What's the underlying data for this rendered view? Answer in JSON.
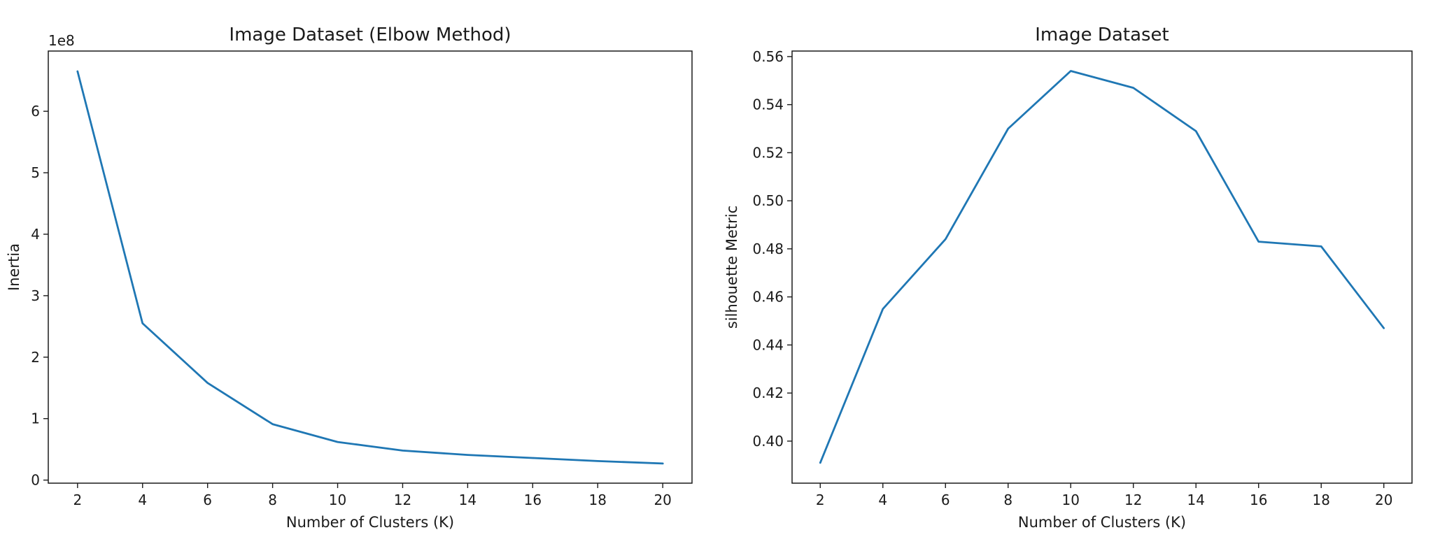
{
  "chart_data": [
    {
      "type": "line",
      "title": "Image Dataset (Elbow Method)",
      "xlabel": "Number of Clusters (K)",
      "ylabel": "Inertia",
      "y_offset_label": "1e8",
      "x": [
        2,
        4,
        6,
        8,
        10,
        12,
        14,
        16,
        18,
        20
      ],
      "series": [
        {
          "values": [
            6.65,
            2.55,
            1.58,
            0.91,
            0.62,
            0.48,
            0.41,
            0.36,
            0.31,
            0.27
          ],
          "color": "#1f77b4"
        }
      ],
      "xlim": [
        1.1,
        20.9
      ],
      "ylim": [
        -0.05,
        6.98
      ],
      "xticks": [
        2,
        4,
        6,
        8,
        10,
        12,
        14,
        16,
        18,
        20
      ],
      "yticks": [
        0,
        1,
        2,
        3,
        4,
        5,
        6
      ],
      "grid": false
    },
    {
      "type": "line",
      "title": "Image Dataset",
      "xlabel": "Number of Clusters (K)",
      "ylabel": "silhouette Metric",
      "x": [
        2,
        4,
        6,
        8,
        10,
        12,
        14,
        16,
        18,
        20
      ],
      "series": [
        {
          "values": [
            0.391,
            0.455,
            0.484,
            0.53,
            0.554,
            0.547,
            0.529,
            0.483,
            0.481,
            0.447
          ],
          "color": "#1f77b4"
        }
      ],
      "xlim": [
        1.1,
        20.9
      ],
      "ylim": [
        0.3825,
        0.5623
      ],
      "xticks": [
        2,
        4,
        6,
        8,
        10,
        12,
        14,
        16,
        18,
        20
      ],
      "yticks": [
        0.4,
        0.42,
        0.44,
        0.46,
        0.48,
        0.5,
        0.52,
        0.54,
        0.56
      ],
      "ytick_decimals": 2,
      "grid": false
    }
  ]
}
